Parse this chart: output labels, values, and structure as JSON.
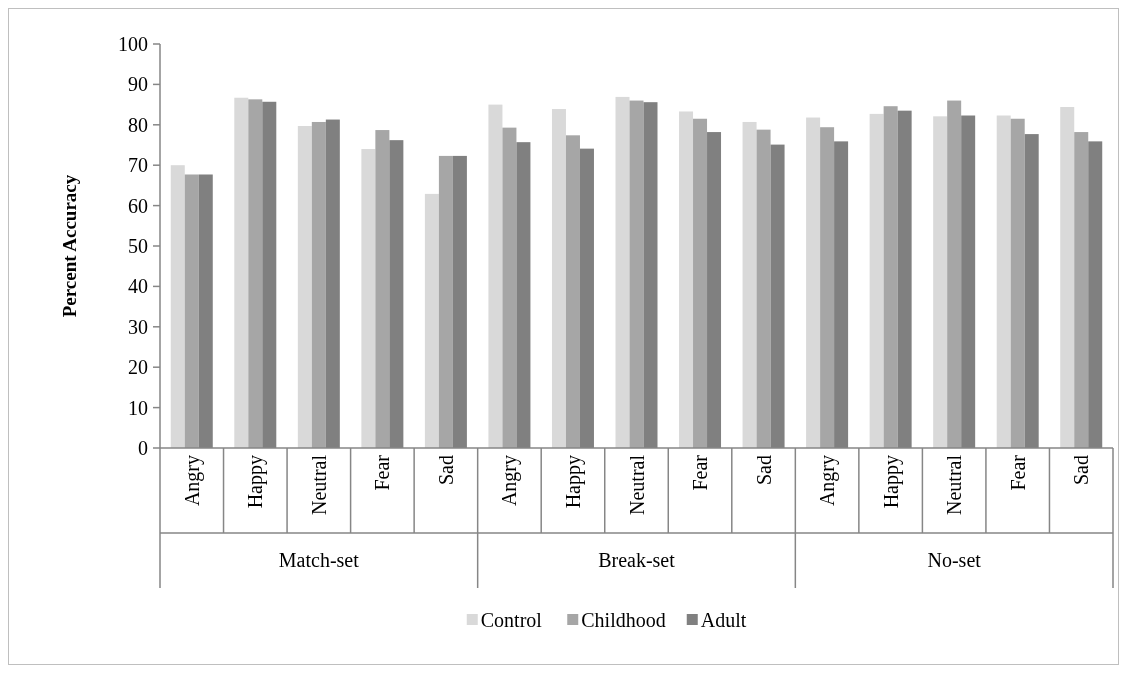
{
  "chart_data": {
    "type": "bar",
    "ylabel": "Percent Accuracy",
    "categories": [
      "Angry",
      "Happy",
      "Neutral",
      "Fear",
      "Sad",
      "Angry",
      "Happy",
      "Neutral",
      "Fear",
      "Sad",
      "Angry",
      "Happy",
      "Neutral",
      "Fear",
      "Sad"
    ],
    "annotations": [
      "Match-set",
      "Break-set",
      "No-set"
    ],
    "series": [
      {
        "name": "Control",
        "color": "#d9d9d9",
        "values": [
          70,
          86.7,
          79.7,
          74,
          62.9,
          85,
          83.9,
          86.9,
          83.3,
          80.7,
          81.8,
          82.7,
          82.1,
          82.3,
          84.4
        ]
      },
      {
        "name": "Childhood",
        "color": "#a6a6a6",
        "values": [
          67.7,
          86.3,
          80.7,
          78.7,
          72.3,
          79.3,
          77.4,
          86,
          81.5,
          78.8,
          79.4,
          84.6,
          86,
          81.5,
          78.2
        ]
      },
      {
        "name": "Adult",
        "color": "#808080",
        "values": [
          67.7,
          85.7,
          81.3,
          76.2,
          72.3,
          75.7,
          74.1,
          85.6,
          78.2,
          75.1,
          75.9,
          83.5,
          82.3,
          77.7,
          75.9
        ]
      }
    ],
    "ylim": [
      0,
      100
    ],
    "yticks": [
      0,
      10,
      20,
      30,
      40,
      50,
      60,
      70,
      80,
      90,
      100
    ],
    "legend": "bottom",
    "grid": false
  }
}
